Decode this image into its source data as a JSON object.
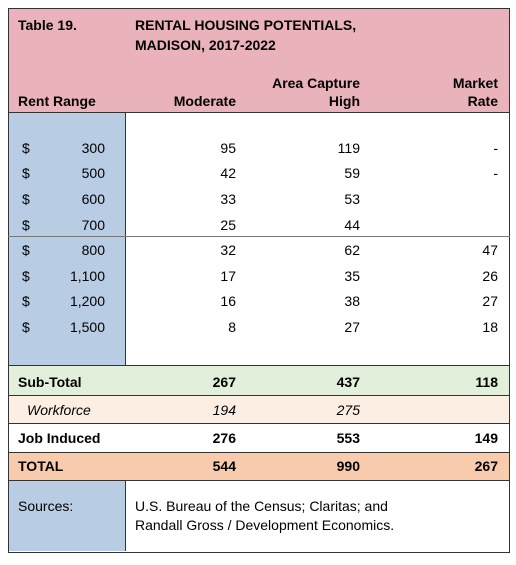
{
  "header": {
    "table_label": "Table 19.",
    "title_lines": [
      "RENTAL HOUSING POTENTIALS,",
      "MADISON, 2017-2022"
    ]
  },
  "columns": {
    "rent_range": "Rent Range",
    "capture_label": "Area Capture",
    "moderate": "Moderate",
    "high": "High",
    "market_rate": [
      "Market",
      "Rate"
    ]
  },
  "rows": [
    {
      "currency": "$",
      "rent": "300",
      "moderate": "95",
      "high": "119",
      "market": "-"
    },
    {
      "currency": "$",
      "rent": "500",
      "moderate": "42",
      "high": "59",
      "market": "-"
    },
    {
      "currency": "$",
      "rent": "600",
      "moderate": "33",
      "high": "53"
    },
    {
      "currency": "$",
      "rent": "700",
      "moderate": "25",
      "high": "44"
    },
    {
      "currency": "$",
      "rent": "800",
      "moderate": "32",
      "high": "62",
      "market": "47"
    },
    {
      "currency": "$",
      "rent": "1,100",
      "moderate": "17",
      "high": "35",
      "market": "26"
    },
    {
      "currency": "$",
      "rent": "1,200",
      "moderate": "16",
      "high": "38",
      "market": "27"
    },
    {
      "currency": "$",
      "rent": "1,500",
      "moderate": "8",
      "high": "27",
      "market": "18"
    }
  ],
  "summary": [
    {
      "label": "Sub-Total",
      "moderate": "267",
      "high": "437",
      "market": "118"
    },
    {
      "label": "Workforce",
      "moderate": "194",
      "high": "275"
    },
    {
      "label": "Job Induced",
      "moderate": "276",
      "high": "553",
      "market": "149"
    },
    {
      "label": "TOTAL",
      "moderate": "544",
      "high": "990",
      "market": "267"
    }
  ],
  "sources": {
    "label": "Sources:",
    "text_lines": [
      "U.S. Bureau of the Census; Claritas; and",
      "Randall Gross / Development Economics."
    ]
  }
}
